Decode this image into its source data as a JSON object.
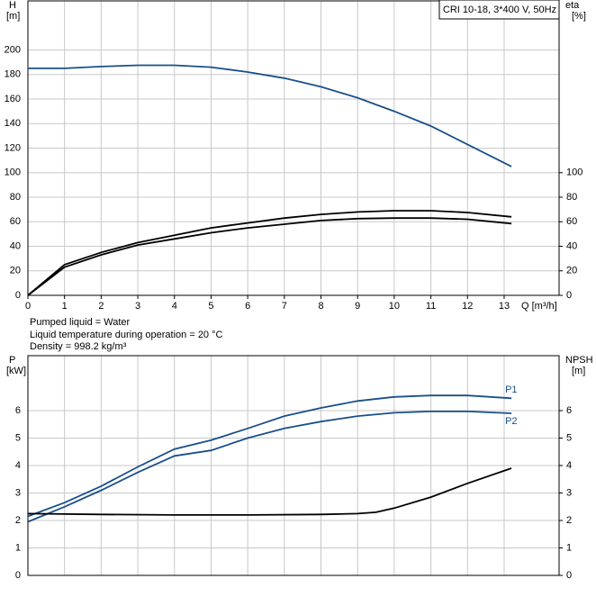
{
  "info": [
    "Pumped liquid = Water",
    "Liquid temperature during operation = 20 °C",
    "Density = 998.2 kg/m³"
  ],
  "chart_data": [
    {
      "type": "line",
      "title": "CRI 10-18, 3*400 V, 50Hz",
      "ylabel": "H",
      "ylabel_unit": "[m]",
      "y2label": "eta",
      "y2label_unit": "[%]",
      "xlabel": "Q [m³/h]",
      "xlim": [
        0,
        14.5
      ],
      "xticks": [
        0,
        1,
        2,
        3,
        4,
        5,
        6,
        7,
        8,
        9,
        10,
        11,
        12,
        13
      ],
      "xtick_labels": true,
      "ylim": [
        0,
        240
      ],
      "yticks": [
        0,
        20,
        40,
        60,
        80,
        100,
        120,
        140,
        160,
        180,
        200
      ],
      "y2lim": [
        0,
        240
      ],
      "y2ticks": [
        0,
        20,
        40,
        60,
        80,
        100
      ],
      "grid": true,
      "series": [
        {
          "color": "#1a4f8a",
          "x": [
            0,
            1,
            2,
            3,
            4,
            5,
            6,
            7,
            8,
            9,
            10,
            11,
            12,
            13.2
          ],
          "values": [
            185,
            185,
            186.5,
            187.5,
            187.5,
            186,
            182,
            177,
            170,
            161,
            150,
            138,
            123,
            105
          ]
        },
        {
          "color": "#000000",
          "axis": "y2",
          "x": [
            0,
            1,
            2,
            3,
            4,
            5,
            6,
            7,
            8,
            9,
            10,
            11,
            12,
            13.2
          ],
          "values": [
            0,
            25,
            35,
            43,
            49,
            55,
            59,
            63,
            66,
            68,
            69,
            69,
            67.5,
            64
          ]
        },
        {
          "color": "#000000",
          "axis": "y2",
          "x": [
            0,
            1,
            2,
            3,
            4,
            5,
            6,
            7,
            8,
            9,
            10,
            11,
            12,
            13.2
          ],
          "values": [
            0,
            23,
            33,
            41,
            46,
            51,
            55,
            58,
            61,
            62.5,
            63,
            63,
            62,
            58.5
          ]
        }
      ]
    },
    {
      "type": "line",
      "ylabel": "P",
      "ylabel_unit": "[kW]",
      "y2label": "NPSH",
      "y2label_unit": "[m]",
      "xlim": [
        0,
        14.5
      ],
      "xticks": [
        0,
        1,
        2,
        3,
        4,
        5,
        6,
        7,
        8,
        9,
        10,
        11,
        12,
        13
      ],
      "xtick_labels": false,
      "ylim": [
        0,
        8
      ],
      "yticks": [
        0,
        1,
        2,
        3,
        4,
        5,
        6
      ],
      "y2lim": [
        0,
        8
      ],
      "y2ticks": [
        0,
        1,
        2,
        3,
        4,
        5,
        6
      ],
      "grid": true,
      "series": [
        {
          "name": "P1",
          "color": "#1a4f8a",
          "x": [
            0,
            1,
            2,
            3,
            4,
            5,
            6,
            7,
            8,
            9,
            10,
            11,
            12,
            13.2
          ],
          "values": [
            2.15,
            2.65,
            3.25,
            3.95,
            4.6,
            4.92,
            5.35,
            5.8,
            6.1,
            6.35,
            6.5,
            6.55,
            6.55,
            6.45
          ]
        },
        {
          "name": "P2",
          "color": "#1a4f8a",
          "x": [
            0,
            1,
            2,
            3,
            4,
            5,
            6,
            7,
            8,
            9,
            10,
            11,
            12,
            13.2
          ],
          "values": [
            1.95,
            2.5,
            3.1,
            3.75,
            4.35,
            4.55,
            5.0,
            5.35,
            5.6,
            5.8,
            5.92,
            5.97,
            5.97,
            5.9
          ]
        },
        {
          "color": "#000000",
          "axis": "y2",
          "x": [
            0,
            2,
            4,
            6,
            8,
            9,
            9.5,
            10,
            11,
            12,
            13.2
          ],
          "values": [
            2.25,
            2.22,
            2.2,
            2.2,
            2.22,
            2.25,
            2.3,
            2.45,
            2.85,
            3.35,
            3.9
          ]
        }
      ]
    }
  ]
}
